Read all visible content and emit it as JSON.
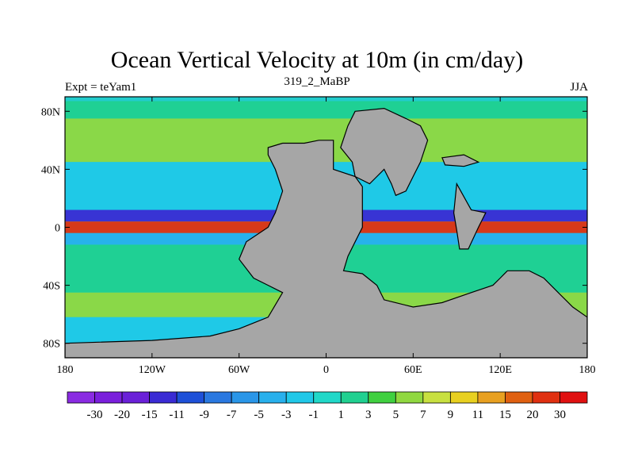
{
  "chart_data": {
    "type": "heatmap",
    "title": "Ocean Vertical Velocity at 10m (in cm/day)",
    "subtitle_left": "Expt = teYam1",
    "subtitle_center": "319_2_MaBP",
    "subtitle_right": "JJA",
    "x_ticks": [
      "180",
      "120W",
      "60W",
      "0",
      "60E",
      "120E",
      "180"
    ],
    "x_tick_values": [
      -180,
      -120,
      -60,
      0,
      60,
      120,
      180
    ],
    "y_ticks": [
      "80N",
      "40N",
      "0",
      "40S",
      "80S"
    ],
    "y_tick_values": [
      80,
      40,
      0,
      -40,
      -80
    ],
    "xlim": [
      -180,
      180
    ],
    "ylim": [
      -90,
      90
    ],
    "colorbar": {
      "labels": [
        "-30",
        "-20",
        "-15",
        "-11",
        "-9",
        "-7",
        "-5",
        "-3",
        "-1",
        "1",
        "3",
        "5",
        "7",
        "9",
        "11",
        "15",
        "20",
        "30"
      ],
      "colors": [
        "#8a2be2",
        "#7a1fdc",
        "#6a20d8",
        "#3a2bd4",
        "#1e50d8",
        "#2a78e0",
        "#2a96e8",
        "#28b0ec",
        "#20c8e8",
        "#20d8c8",
        "#20d090",
        "#40d040",
        "#90d840",
        "#c8e040",
        "#e8d020",
        "#e8a020",
        "#e06010",
        "#e03010",
        "#e01010"
      ]
    },
    "land_color": "#a6a6a6",
    "ocean_color": "#22cccc",
    "bands": [
      {
        "lat_from": 75,
        "lat_to": 87,
        "value": 1
      },
      {
        "lat_from": 45,
        "lat_to": 75,
        "value": 5
      },
      {
        "lat_from": 12,
        "lat_to": 45,
        "value": -3
      },
      {
        "lat_from": 4,
        "lat_to": 12,
        "value": -15
      },
      {
        "lat_from": -4,
        "lat_to": 4,
        "value": 20
      },
      {
        "lat_from": -12,
        "lat_to": -4,
        "value": -5
      },
      {
        "lat_from": -45,
        "lat_to": -12,
        "value": 1
      },
      {
        "lat_from": -62,
        "lat_to": -45,
        "value": 5
      },
      {
        "lat_from": -90,
        "lat_to": -62,
        "value": -3
      }
    ],
    "land": [
      {
        "name": "western-supercontinent",
        "polygon": [
          [
            -40,
            55
          ],
          [
            -30,
            58
          ],
          [
            -15,
            58
          ],
          [
            -5,
            60
          ],
          [
            5,
            60
          ],
          [
            5,
            40
          ],
          [
            20,
            35
          ],
          [
            25,
            28
          ],
          [
            25,
            0
          ],
          [
            20,
            -10
          ],
          [
            15,
            -20
          ],
          [
            12,
            -30
          ],
          [
            25,
            -32
          ],
          [
            35,
            -40
          ],
          [
            40,
            -50
          ],
          [
            60,
            -55
          ],
          [
            80,
            -52
          ],
          [
            100,
            -45
          ],
          [
            115,
            -40
          ],
          [
            120,
            -35
          ],
          [
            125,
            -30
          ],
          [
            140,
            -30
          ],
          [
            150,
            -35
          ],
          [
            160,
            -45
          ],
          [
            170,
            -55
          ],
          [
            180,
            -62
          ],
          [
            180,
            -90
          ],
          [
            -180,
            -90
          ],
          [
            -180,
            -80
          ],
          [
            -120,
            -78
          ],
          [
            -80,
            -75
          ],
          [
            -60,
            -70
          ],
          [
            -40,
            -62
          ],
          [
            -30,
            -45
          ],
          [
            -40,
            -40
          ],
          [
            -50,
            -35
          ],
          [
            -60,
            -22
          ],
          [
            -55,
            -10
          ],
          [
            -40,
            0
          ],
          [
            -35,
            10
          ],
          [
            -30,
            25
          ],
          [
            -35,
            40
          ],
          [
            -40,
            50
          ]
        ]
      },
      {
        "name": "northern-landmass",
        "polygon": [
          [
            20,
            80
          ],
          [
            40,
            82
          ],
          [
            55,
            75
          ],
          [
            65,
            70
          ],
          [
            70,
            60
          ],
          [
            65,
            45
          ],
          [
            60,
            35
          ],
          [
            55,
            25
          ],
          [
            48,
            22
          ],
          [
            45,
            30
          ],
          [
            40,
            40
          ],
          [
            35,
            35
          ],
          [
            30,
            30
          ],
          [
            20,
            35
          ],
          [
            18,
            45
          ],
          [
            10,
            55
          ],
          [
            15,
            70
          ]
        ]
      },
      {
        "name": "eastern-island",
        "polygon": [
          [
            90,
            30
          ],
          [
            100,
            12
          ],
          [
            110,
            10
          ],
          [
            105,
            0
          ],
          [
            98,
            -15
          ],
          [
            92,
            -15
          ],
          [
            90,
            -2
          ],
          [
            88,
            10
          ]
        ]
      },
      {
        "name": "small-northeast-island",
        "polygon": [
          [
            80,
            48
          ],
          [
            95,
            50
          ],
          [
            105,
            45
          ],
          [
            95,
            42
          ],
          [
            82,
            43
          ]
        ]
      }
    ]
  }
}
